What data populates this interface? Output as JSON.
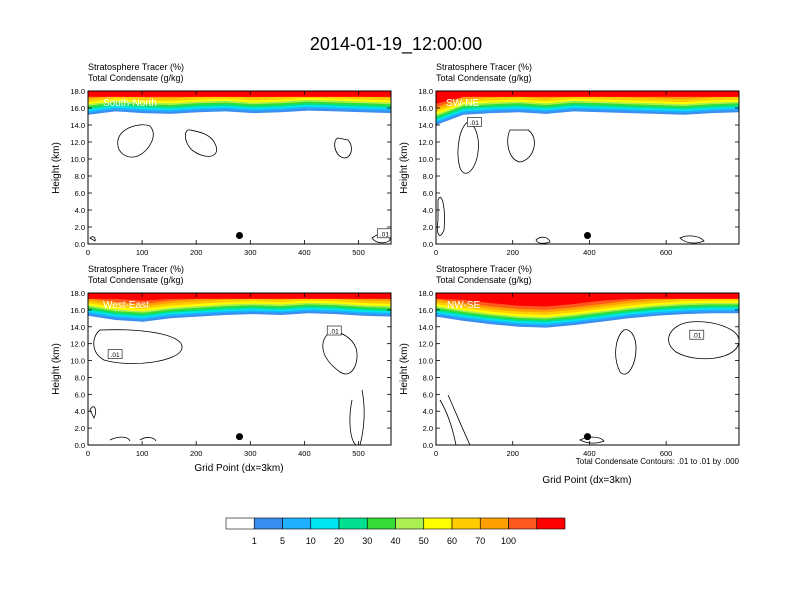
{
  "figure": {
    "title": "2014-01-19_12:00:00",
    "contour_note": "Total Condensate Contours: .01 to .01 by .000"
  },
  "colors": {
    "levels": [
      "#ffffff",
      "#3a8ef0",
      "#1fb0ff",
      "#00e6f0",
      "#00e090",
      "#33dd33",
      "#aaf050",
      "#ffff00",
      "#ffcc00",
      "#ffa000",
      "#ff5a1e",
      "#ff0000"
    ],
    "frame": "#000000"
  },
  "colorbar": {
    "labels": [
      "1",
      "5",
      "10",
      "20",
      "30",
      "40",
      "50",
      "60",
      "70",
      "100"
    ]
  },
  "chart_data": [
    {
      "type": "heatmap",
      "label": "South-North",
      "title_line1": "Stratosphere Tracer   (%)",
      "title_line2": "Total Condensate   (g/kg)",
      "xlabel": "",
      "ylabel": "Height (km)",
      "xlim": [
        0,
        560
      ],
      "ylim": [
        0,
        18
      ],
      "xticks": [
        0,
        100,
        200,
        300,
        400,
        500
      ],
      "yticks": [
        0,
        2,
        4,
        6,
        8,
        10,
        12,
        14,
        16,
        18
      ],
      "ytick_labels": [
        "0.0",
        "2.0",
        "4.0",
        "6.0",
        "8.0",
        "10.0",
        "12.0",
        "14.0",
        "16.0",
        "18.0"
      ],
      "marker": [
        280,
        1.0
      ],
      "contour_labels": [
        {
          "text": ".01",
          "x": 548,
          "y": 1.2
        }
      ],
      "tropopause_km": [
        15.2,
        15.6,
        15.4,
        15.3,
        15.5,
        15.6,
        15.4,
        15.5,
        15.7,
        15.6,
        15.5,
        15.4
      ]
    },
    {
      "type": "heatmap",
      "label": "SW-NE",
      "title_line1": "Stratosphere Tracer   (%)",
      "title_line2": "Total Condensate   (g/kg)",
      "xlabel": "",
      "ylabel": "Height (km)",
      "xlim": [
        0,
        790
      ],
      "ylim": [
        0,
        18
      ],
      "xticks": [
        0,
        200,
        400,
        600
      ],
      "yticks": [
        0,
        2,
        4,
        6,
        8,
        10,
        12,
        14,
        16,
        18
      ],
      "ytick_labels": [
        "0.0",
        "2.0",
        "4.0",
        "6.0",
        "8.0",
        "10.0",
        "12.0",
        "14.0",
        "16.0",
        "18.0"
      ],
      "marker": [
        395,
        1.0
      ],
      "contour_labels": [
        {
          "text": ".01",
          "x": 100,
          "y": 14.3
        }
      ],
      "tropopause_km": [
        14.0,
        15.2,
        15.4,
        15.5,
        15.3,
        15.6,
        15.5,
        15.4,
        15.3,
        15.2,
        15.4,
        15.5
      ]
    },
    {
      "type": "heatmap",
      "label": "West-East",
      "title_line1": "Stratosphere Tracer   (%)",
      "title_line2": "Total Condensate   (g/kg)",
      "xlabel": "Grid Point (dx=3km)",
      "ylabel": "Height (km)",
      "xlim": [
        0,
        560
      ],
      "ylim": [
        0,
        18
      ],
      "xticks": [
        0,
        100,
        200,
        300,
        400,
        500
      ],
      "yticks": [
        0,
        2,
        4,
        6,
        8,
        10,
        12,
        14,
        16,
        18
      ],
      "ytick_labels": [
        "0.0",
        "2.0",
        "4.0",
        "6.0",
        "8.0",
        "10.0",
        "12.0",
        "14.0",
        "16.0",
        "18.0"
      ],
      "marker": [
        280,
        1.0
      ],
      "contour_labels": [
        {
          "text": ".01",
          "x": 50,
          "y": 10.7
        },
        {
          "text": ".01",
          "x": 455,
          "y": 13.5
        }
      ],
      "tropopause_km": [
        15.3,
        14.8,
        14.6,
        15.0,
        15.2,
        15.4,
        15.5,
        15.4,
        15.6,
        15.5,
        15.3,
        15.2
      ]
    },
    {
      "type": "heatmap",
      "label": "NW-SE",
      "title_line1": "Stratosphere Tracer   (%)",
      "title_line2": "Total Condensate   (g/kg)",
      "xlabel": "Grid Point (dx=3km)",
      "ylabel": "Height (km)",
      "xlim": [
        0,
        790
      ],
      "ylim": [
        0,
        18
      ],
      "xticks": [
        0,
        200,
        400,
        600
      ],
      "yticks": [
        0,
        2,
        4,
        6,
        8,
        10,
        12,
        14,
        16,
        18
      ],
      "ytick_labels": [
        "0.0",
        "2.0",
        "4.0",
        "6.0",
        "8.0",
        "10.0",
        "12.0",
        "14.0",
        "16.0",
        "18.0"
      ],
      "marker": [
        395,
        1.0
      ],
      "contour_labels": [
        {
          "text": ".01",
          "x": 680,
          "y": 13.0
        }
      ],
      "tropopause_km": [
        15.2,
        14.7,
        14.3,
        14.0,
        13.9,
        14.2,
        14.6,
        15.0,
        15.3,
        15.5,
        15.6,
        15.6
      ]
    }
  ]
}
